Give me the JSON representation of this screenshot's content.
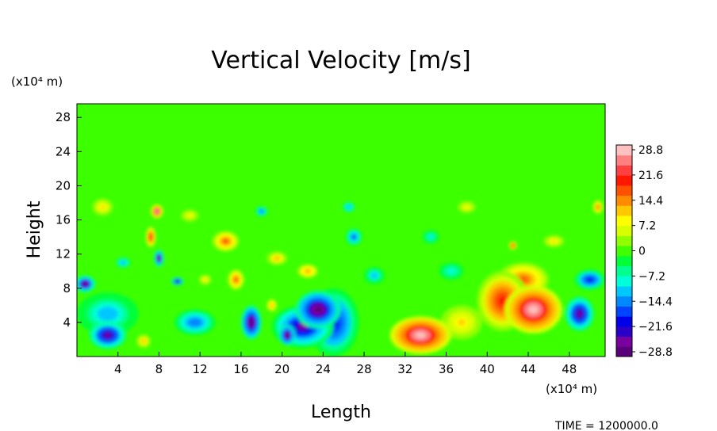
{
  "chart_data": {
    "type": "heatmap",
    "title": "Vertical Velocity [m/s]",
    "xlabel": "Length",
    "ylabel": "Height",
    "x_unit": "(x10⁴ m)",
    "y_unit": "(x10⁴ m)",
    "x_ticks": [
      4,
      8,
      12,
      16,
      20,
      24,
      28,
      32,
      36,
      40,
      44,
      48
    ],
    "y_ticks": [
      4,
      8,
      12,
      16,
      20,
      24,
      28
    ],
    "xlim": [
      0,
      51.5
    ],
    "ylim": [
      0,
      29.6
    ],
    "colorbar": {
      "ticks": [
        "28.8",
        "21.6",
        "14.4",
        "7.2",
        "0",
        "−7.2",
        "−14.4",
        "−21.6",
        "−28.8"
      ],
      "range": [
        -28.8,
        28.8
      ],
      "colors": [
        "#5a007a",
        "#7a00a0",
        "#2a00c8",
        "#0000e8",
        "#0044ff",
        "#0088ff",
        "#00c8ff",
        "#00ffd8",
        "#00ff90",
        "#00ff38",
        "#40ff00",
        "#90ff00",
        "#d8ff00",
        "#ffff00",
        "#ffc800",
        "#ff8c00",
        "#ff5000",
        "#ff1800",
        "#ff4040",
        "#ff8080",
        "#ffc0c0"
      ]
    },
    "background_value": 0,
    "features": [
      {
        "x": 33.5,
        "y": 2.5,
        "rx": 3.0,
        "ry": 2.2,
        "value": 30
      },
      {
        "x": 44.5,
        "y": 5.5,
        "rx": 2.8,
        "ry": 2.8,
        "value": 29
      },
      {
        "x": 41.5,
        "y": 6.5,
        "rx": 2.5,
        "ry": 3.5,
        "value": 20
      },
      {
        "x": 43.5,
        "y": 9.0,
        "rx": 2.5,
        "ry": 2.0,
        "value": 16
      },
      {
        "x": 37.5,
        "y": 4.0,
        "rx": 2.0,
        "ry": 2.0,
        "value": 10
      },
      {
        "x": 23.5,
        "y": 5.5,
        "rx": 2.2,
        "ry": 2.2,
        "value": -29
      },
      {
        "x": 17.0,
        "y": 4.0,
        "rx": 1.0,
        "ry": 2.0,
        "value": -29
      },
      {
        "x": 20.5,
        "y": 2.5,
        "rx": 0.8,
        "ry": 1.2,
        "value": -29
      },
      {
        "x": 22.0,
        "y": 3.5,
        "rx": 3.0,
        "ry": 2.5,
        "value": -24
      },
      {
        "x": 25.0,
        "y": 4.0,
        "rx": 2.5,
        "ry": 4.0,
        "value": -20
      },
      {
        "x": 3.0,
        "y": 2.5,
        "rx": 1.8,
        "ry": 1.6,
        "value": -25
      },
      {
        "x": 0.8,
        "y": 8.5,
        "rx": 1.0,
        "ry": 1.0,
        "value": -28
      },
      {
        "x": 3.0,
        "y": 5.0,
        "rx": 3.0,
        "ry": 2.5,
        "value": -12
      },
      {
        "x": 49.0,
        "y": 5.0,
        "rx": 1.4,
        "ry": 2.0,
        "value": -26
      },
      {
        "x": 50.0,
        "y": 9.0,
        "rx": 1.5,
        "ry": 1.2,
        "value": -20
      },
      {
        "x": 8.0,
        "y": 11.5,
        "rx": 0.5,
        "ry": 1.0,
        "value": -28
      },
      {
        "x": 9.8,
        "y": 8.8,
        "rx": 0.6,
        "ry": 0.5,
        "value": -27
      },
      {
        "x": 27.0,
        "y": 14.0,
        "rx": 0.8,
        "ry": 1.0,
        "value": -18
      },
      {
        "x": 11.5,
        "y": 4.0,
        "rx": 2.0,
        "ry": 1.5,
        "value": -15
      },
      {
        "x": 7.8,
        "y": 17.0,
        "rx": 0.6,
        "ry": 0.8,
        "value": 28
      },
      {
        "x": 7.2,
        "y": 14.0,
        "rx": 0.5,
        "ry": 1.2,
        "value": 22
      },
      {
        "x": 14.5,
        "y": 13.5,
        "rx": 1.3,
        "ry": 1.2,
        "value": 18
      },
      {
        "x": 15.5,
        "y": 9.0,
        "rx": 0.8,
        "ry": 1.2,
        "value": 18
      },
      {
        "x": 22.5,
        "y": 10.0,
        "rx": 1.0,
        "ry": 0.8,
        "value": 14
      },
      {
        "x": 19.5,
        "y": 11.5,
        "rx": 1.0,
        "ry": 0.8,
        "value": 12
      },
      {
        "x": 6.5,
        "y": 1.8,
        "rx": 0.7,
        "ry": 0.8,
        "value": 12
      },
      {
        "x": 12.5,
        "y": 9.0,
        "rx": 0.6,
        "ry": 0.6,
        "value": 10
      },
      {
        "x": 19.0,
        "y": 6.0,
        "rx": 0.5,
        "ry": 0.7,
        "value": 14
      },
      {
        "x": 50.8,
        "y": 17.5,
        "rx": 0.5,
        "ry": 0.8,
        "value": 16
      },
      {
        "x": 42.5,
        "y": 13.0,
        "rx": 0.4,
        "ry": 0.5,
        "value": 22
      },
      {
        "x": 18.0,
        "y": 17.0,
        "rx": 0.6,
        "ry": 0.6,
        "value": -16
      },
      {
        "x": 26.5,
        "y": 17.5,
        "rx": 0.6,
        "ry": 0.6,
        "value": -14
      },
      {
        "x": 34.5,
        "y": 14.0,
        "rx": 0.8,
        "ry": 0.8,
        "value": -10
      },
      {
        "x": 46.5,
        "y": 13.5,
        "rx": 1.0,
        "ry": 0.7,
        "value": 10
      },
      {
        "x": 11.0,
        "y": 16.5,
        "rx": 1.0,
        "ry": 0.8,
        "value": 8
      },
      {
        "x": 2.5,
        "y": 17.5,
        "rx": 1.0,
        "ry": 1.0,
        "value": 10
      },
      {
        "x": 29.0,
        "y": 9.5,
        "rx": 1.0,
        "ry": 1.0,
        "value": -12
      },
      {
        "x": 36.5,
        "y": 10.0,
        "rx": 1.2,
        "ry": 1.0,
        "value": -9
      },
      {
        "x": 4.5,
        "y": 11.0,
        "rx": 0.7,
        "ry": 0.6,
        "value": -14
      },
      {
        "x": 38.0,
        "y": 17.5,
        "rx": 1.0,
        "ry": 0.8,
        "value": 8
      }
    ]
  },
  "time_label": "TIME  =  1200000.0"
}
